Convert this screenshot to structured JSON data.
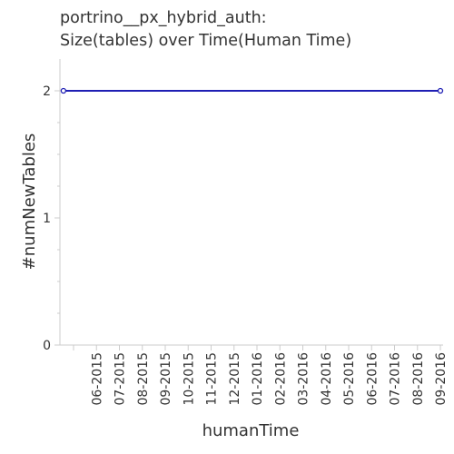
{
  "chart_data": {
    "type": "line",
    "title_lines": [
      "portrino__px_hybrid_auth:",
      "Size(tables) over Time(Human Time)"
    ],
    "xlabel": "humanTime",
    "ylabel": "#numNewTables",
    "x_ticks": [
      "06-2015",
      "07-2015",
      "08-2015",
      "09-2015",
      "10-2015",
      "11-2015",
      "12-2015",
      "01-2016",
      "02-2016",
      "03-2016",
      "04-2016",
      "05-2016",
      "06-2016",
      "07-2016",
      "08-2016",
      "09-2016"
    ],
    "y_ticks": [
      "0",
      "1",
      "2"
    ],
    "ylim": [
      0,
      2.25
    ],
    "series": [
      {
        "color": "#1f1fb4",
        "x": [
          "2015-04-18",
          "2016-09-01"
        ],
        "y": [
          2,
          2
        ]
      }
    ],
    "grid": false
  }
}
